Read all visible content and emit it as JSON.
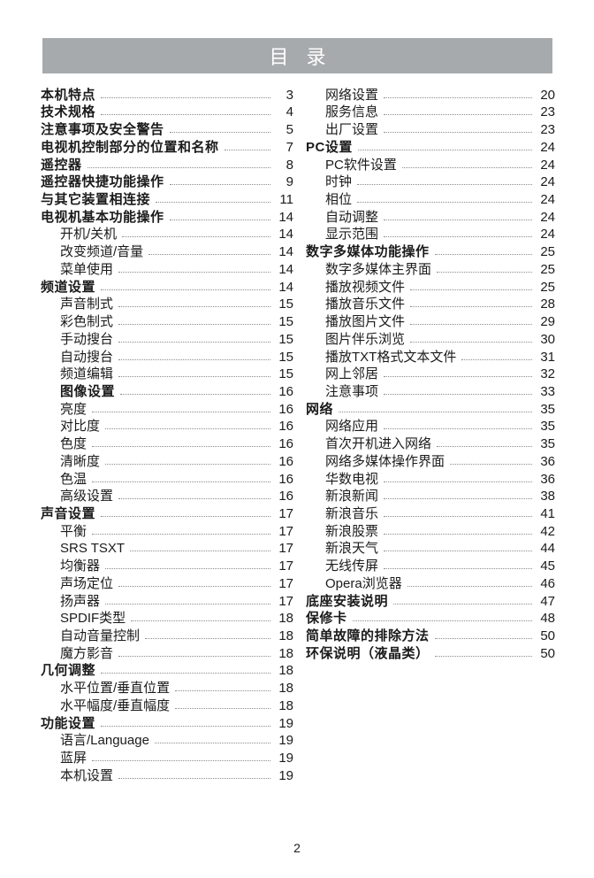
{
  "header": {
    "title": "目 录"
  },
  "colors": {
    "header_bg": "#a7aaac",
    "header_text": "#ffffff",
    "leader": "#8c8c8c",
    "text": "#1b1b1b"
  },
  "toc": {
    "left": [
      {
        "label": "本机特点",
        "page": "3",
        "level": 0,
        "bold": true
      },
      {
        "label": "技术规格",
        "page": "4",
        "level": 0,
        "bold": true
      },
      {
        "label": "注意事项及安全警告",
        "page": "5",
        "level": 0,
        "bold": true
      },
      {
        "label": "电视机控制部分的位置和名称",
        "page": "7",
        "level": 0,
        "bold": true
      },
      {
        "label": "遥控器",
        "page": "8",
        "level": 0,
        "bold": true
      },
      {
        "label": "遥控器快捷功能操作",
        "page": "9",
        "level": 0,
        "bold": true
      },
      {
        "label": "与其它装置相连接",
        "page": "11",
        "level": 0,
        "bold": true
      },
      {
        "label": "电视机基本功能操作",
        "page": "14",
        "level": 0,
        "bold": true
      },
      {
        "label": "开机/关机",
        "page": "14",
        "level": 1,
        "bold": false
      },
      {
        "label": "改变频道/音量",
        "page": "14",
        "level": 1,
        "bold": false
      },
      {
        "label": "菜单使用",
        "page": "14",
        "level": 1,
        "bold": false
      },
      {
        "label": "频道设置",
        "page": "14",
        "level": 0,
        "bold": true
      },
      {
        "label": "声音制式",
        "page": "15",
        "level": 1,
        "bold": false
      },
      {
        "label": "彩色制式",
        "page": "15",
        "level": 1,
        "bold": false
      },
      {
        "label": "手动搜台",
        "page": "15",
        "level": 1,
        "bold": false
      },
      {
        "label": "自动搜台",
        "page": "15",
        "level": 1,
        "bold": false
      },
      {
        "label": "频道编辑",
        "page": "15",
        "level": 1,
        "bold": false
      },
      {
        "label": "图像设置",
        "page": "16",
        "level": 1,
        "bold": true
      },
      {
        "label": "亮度",
        "page": "16",
        "level": 1,
        "bold": false
      },
      {
        "label": "对比度",
        "page": "16",
        "level": 1,
        "bold": false
      },
      {
        "label": "色度",
        "page": "16",
        "level": 1,
        "bold": false
      },
      {
        "label": "清晰度",
        "page": "16",
        "level": 1,
        "bold": false
      },
      {
        "label": "色温",
        "page": "16",
        "level": 1,
        "bold": false
      },
      {
        "label": "高级设置",
        "page": "16",
        "level": 1,
        "bold": false
      },
      {
        "label": "声音设置",
        "page": "17",
        "level": 0,
        "bold": true
      },
      {
        "label": "平衡",
        "page": "17",
        "level": 1,
        "bold": false
      },
      {
        "label": "SRS TSXT",
        "page": "17",
        "level": 1,
        "bold": false
      },
      {
        "label": "均衡器",
        "page": "17",
        "level": 1,
        "bold": false
      },
      {
        "label": "声场定位",
        "page": "17",
        "level": 1,
        "bold": false
      },
      {
        "label": "扬声器",
        "page": "17",
        "level": 1,
        "bold": false
      },
      {
        "label": "SPDIF类型",
        "page": "18",
        "level": 1,
        "bold": false
      },
      {
        "label": "自动音量控制",
        "page": "18",
        "level": 1,
        "bold": false
      },
      {
        "label": "魔方影音",
        "page": "18",
        "level": 1,
        "bold": false
      },
      {
        "label": "几何调整",
        "page": "18",
        "level": 0,
        "bold": true
      },
      {
        "label": "水平位置/垂直位置",
        "page": "18",
        "level": 1,
        "bold": false
      },
      {
        "label": "水平幅度/垂直幅度",
        "page": "18",
        "level": 1,
        "bold": false
      },
      {
        "label": "功能设置",
        "page": "19",
        "level": 0,
        "bold": true
      },
      {
        "label": "语言/Language",
        "page": "19",
        "level": 1,
        "bold": false
      },
      {
        "label": "蓝屏",
        "page": "19",
        "level": 1,
        "bold": false
      },
      {
        "label": "本机设置",
        "page": "19",
        "level": 1,
        "bold": false
      }
    ],
    "right": [
      {
        "label": "网络设置",
        "page": "20",
        "level": 1,
        "bold": false
      },
      {
        "label": "服务信息",
        "page": "23",
        "level": 1,
        "bold": false
      },
      {
        "label": "出厂设置",
        "page": "23",
        "level": 1,
        "bold": false
      },
      {
        "label": "PC设置",
        "page": "24",
        "level": 0,
        "bold": true
      },
      {
        "label": "PC软件设置",
        "page": "24",
        "level": 1,
        "bold": false
      },
      {
        "label": "时钟",
        "page": "24",
        "level": 1,
        "bold": false
      },
      {
        "label": "相位",
        "page": "24",
        "level": 1,
        "bold": false
      },
      {
        "label": "自动调整",
        "page": "24",
        "level": 1,
        "bold": false
      },
      {
        "label": "显示范围",
        "page": "24",
        "level": 1,
        "bold": false
      },
      {
        "label": "数字多媒体功能操作",
        "page": "25",
        "level": 0,
        "bold": true
      },
      {
        "label": "数字多媒体主界面",
        "page": "25",
        "level": 1,
        "bold": false
      },
      {
        "label": "播放视频文件",
        "page": "25",
        "level": 1,
        "bold": false
      },
      {
        "label": "播放音乐文件",
        "page": "28",
        "level": 1,
        "bold": false
      },
      {
        "label": "播放图片文件",
        "page": "29",
        "level": 1,
        "bold": false
      },
      {
        "label": "图片伴乐浏览",
        "page": "30",
        "level": 1,
        "bold": false
      },
      {
        "label": "播放TXT格式文本文件",
        "page": "31",
        "level": 1,
        "bold": false
      },
      {
        "label": "网上邻居",
        "page": "32",
        "level": 1,
        "bold": false
      },
      {
        "label": "注意事项",
        "page": "33",
        "level": 1,
        "bold": false
      },
      {
        "label": "网络",
        "page": "35",
        "level": 0,
        "bold": true
      },
      {
        "label": "网络应用",
        "page": "35",
        "level": 1,
        "bold": false
      },
      {
        "label": "首次开机进入网络",
        "page": "35",
        "level": 1,
        "bold": false
      },
      {
        "label": "网络多媒体操作界面",
        "page": "36",
        "level": 1,
        "bold": false
      },
      {
        "label": "华数电视",
        "page": "36",
        "level": 1,
        "bold": false
      },
      {
        "label": "新浪新闻",
        "page": "38",
        "level": 1,
        "bold": false
      },
      {
        "label": "新浪音乐",
        "page": "41",
        "level": 1,
        "bold": false
      },
      {
        "label": "新浪股票",
        "page": "42",
        "level": 1,
        "bold": false
      },
      {
        "label": "新浪天气",
        "page": "44",
        "level": 1,
        "bold": false
      },
      {
        "label": "无线传屏",
        "page": "45",
        "level": 1,
        "bold": false
      },
      {
        "label": "Opera浏览器",
        "page": "46",
        "level": 1,
        "bold": false
      },
      {
        "label": "底座安装说明",
        "page": "47",
        "level": 0,
        "bold": true
      },
      {
        "label": "保修卡",
        "page": "48",
        "level": 0,
        "bold": true
      },
      {
        "label": "简单故障的排除方法",
        "page": "50",
        "level": 0,
        "bold": true
      },
      {
        "label": "环保说明（液晶类）",
        "page": "50",
        "level": 0,
        "bold": true
      }
    ]
  },
  "footer": {
    "page_number": "2"
  }
}
